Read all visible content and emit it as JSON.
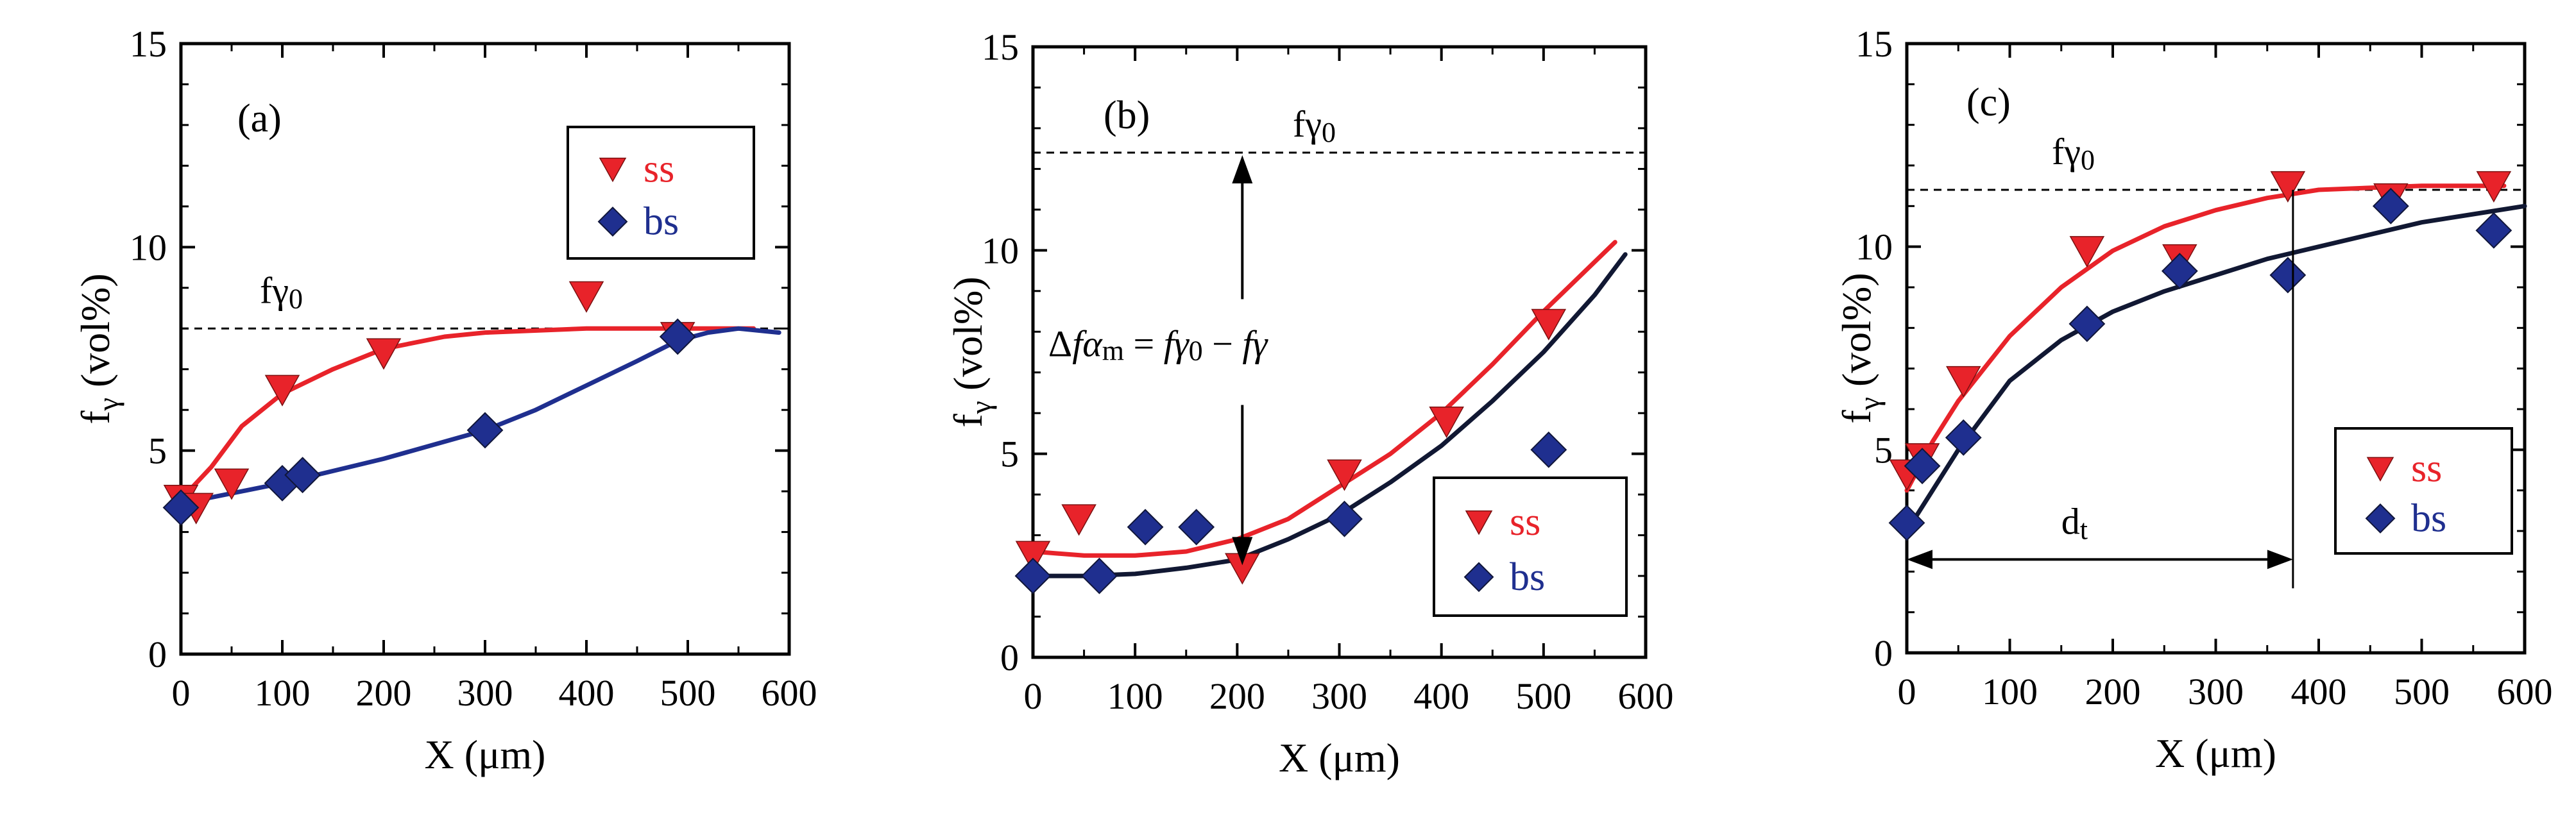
{
  "figure": {
    "colors": {
      "ss": "#e8232a",
      "bs": "#1f2f8f",
      "fit_bs_b": "#111833",
      "axis": "#000000"
    }
  },
  "chart_data": [
    {
      "type": "scatter",
      "panel_label": "(a)",
      "xlabel": "X (μm)",
      "ylabel_main": "f",
      "ylabel_sub": "γ",
      "ylabel_unit": "(vol%)",
      "xlim": [
        0,
        600
      ],
      "ylim": [
        0,
        15
      ],
      "xticks": [
        0,
        100,
        200,
        300,
        400,
        500,
        600
      ],
      "yticks": [
        0,
        5,
        10,
        15
      ],
      "reference": {
        "label_main": "fγ",
        "label_sub": "0",
        "y": 8.0
      },
      "legend": [
        "ss",
        "bs"
      ],
      "series": [
        {
          "name": "ss",
          "marker": "triangle-down",
          "color": "#e8232a",
          "points": [
            [
              0,
              3.8
            ],
            [
              15,
              3.6
            ],
            [
              50,
              4.2
            ],
            [
              100,
              6.5
            ],
            [
              200,
              7.4
            ],
            [
              400,
              8.8
            ],
            [
              490,
              7.8
            ]
          ]
        },
        {
          "name": "bs",
          "marker": "diamond",
          "color": "#1f2f8f",
          "points": [
            [
              0,
              3.6
            ],
            [
              100,
              4.2
            ],
            [
              120,
              4.4
            ],
            [
              300,
              5.5
            ],
            [
              490,
              7.8
            ]
          ]
        }
      ],
      "fits": [
        {
          "name": "ss",
          "color": "#e8232a",
          "points": [
            [
              0,
              3.8
            ],
            [
              30,
              4.6
            ],
            [
              60,
              5.6
            ],
            [
              100,
              6.4
            ],
            [
              150,
              7.0
            ],
            [
              200,
              7.5
            ],
            [
              260,
              7.8
            ],
            [
              300,
              7.9
            ],
            [
              400,
              8.0
            ],
            [
              500,
              8.0
            ],
            [
              565,
              8.0
            ]
          ]
        },
        {
          "name": "bs",
          "color": "#1f2f8f",
          "points": [
            [
              0,
              3.7
            ],
            [
              100,
              4.2
            ],
            [
              200,
              4.8
            ],
            [
              300,
              5.5
            ],
            [
              350,
              6.0
            ],
            [
              400,
              6.6
            ],
            [
              450,
              7.2
            ],
            [
              490,
              7.7
            ],
            [
              520,
              7.9
            ],
            [
              550,
              8.0
            ],
            [
              590,
              7.9
            ]
          ]
        }
      ]
    },
    {
      "type": "scatter",
      "panel_label": "(b)",
      "xlabel": "X (μm)",
      "ylabel_main": "f",
      "ylabel_sub": "γ",
      "ylabel_unit": "(vol%)",
      "xlim": [
        0,
        600
      ],
      "ylim": [
        0,
        15
      ],
      "xticks": [
        0,
        100,
        200,
        300,
        400,
        500,
        600
      ],
      "yticks": [
        0,
        5,
        10,
        15
      ],
      "reference": {
        "label_main": "fγ",
        "label_sub": "0",
        "y": 12.4
      },
      "annotation": {
        "delta": "Δ",
        "f_alpha": "fα",
        "alpha_sub": "m",
        "equals": " = ",
        "f_gamma": "fγ",
        "gamma0_sub": "0",
        "minus": " − ",
        "f_gamma2": "fγ",
        "arrow_x": 205,
        "arrow_y_top": 12.4,
        "arrow_y_bottom": 2.2
      },
      "legend": [
        "ss",
        "bs"
      ],
      "series": [
        {
          "name": "ss",
          "marker": "triangle-down",
          "color": "#e8232a",
          "points": [
            [
              0,
              2.5
            ],
            [
              45,
              3.4
            ],
            [
              205,
              2.2
            ],
            [
              305,
              4.5
            ],
            [
              405,
              5.8
            ],
            [
              505,
              8.2
            ]
          ]
        },
        {
          "name": "bs",
          "marker": "diamond",
          "color": "#1f2f8f",
          "points": [
            [
              0,
              2.0
            ],
            [
              65,
              2.0
            ],
            [
              110,
              3.2
            ],
            [
              160,
              3.2
            ],
            [
              305,
              3.4
            ],
            [
              505,
              5.1
            ]
          ]
        }
      ],
      "fits": [
        {
          "name": "ss",
          "color": "#e8232a",
          "points": [
            [
              0,
              2.6
            ],
            [
              50,
              2.5
            ],
            [
              100,
              2.5
            ],
            [
              150,
              2.6
            ],
            [
              200,
              2.9
            ],
            [
              250,
              3.4
            ],
            [
              300,
              4.2
            ],
            [
              350,
              5.0
            ],
            [
              400,
              6.0
            ],
            [
              450,
              7.2
            ],
            [
              500,
              8.5
            ],
            [
              570,
              10.2
            ]
          ]
        },
        {
          "name": "bs",
          "color": "#111833",
          "points": [
            [
              0,
              2.0
            ],
            [
              50,
              2.0
            ],
            [
              100,
              2.05
            ],
            [
              150,
              2.2
            ],
            [
              200,
              2.4
            ],
            [
              250,
              2.9
            ],
            [
              300,
              3.5
            ],
            [
              350,
              4.3
            ],
            [
              400,
              5.2
            ],
            [
              450,
              6.3
            ],
            [
              500,
              7.5
            ],
            [
              550,
              8.9
            ],
            [
              580,
              9.9
            ]
          ]
        }
      ]
    },
    {
      "type": "scatter",
      "panel_label": "(c)",
      "xlabel": "X (μm)",
      "ylabel_main": "f",
      "ylabel_sub": "γ",
      "ylabel_unit": "(vol%)",
      "xlim": [
        0,
        600
      ],
      "ylim": [
        0,
        15
      ],
      "xticks": [
        0,
        100,
        200,
        300,
        400,
        500,
        600
      ],
      "yticks": [
        0,
        5,
        10,
        15
      ],
      "reference": {
        "label_main": "fγ",
        "label_sub": "0",
        "y": 11.4
      },
      "dt": {
        "label_main": "d",
        "label_sub": "t",
        "x_end": 375,
        "y": 2.3
      },
      "legend": [
        "ss",
        "bs"
      ],
      "series": [
        {
          "name": "ss",
          "marker": "triangle-down",
          "color": "#e8232a",
          "points": [
            [
              0,
              4.4
            ],
            [
              15,
              4.8
            ],
            [
              55,
              6.7
            ],
            [
              175,
              9.9
            ],
            [
              265,
              9.7
            ],
            [
              370,
              11.5
            ],
            [
              470,
              11.2
            ],
            [
              570,
              11.5
            ]
          ]
        },
        {
          "name": "bs",
          "marker": "diamond",
          "color": "#1f2f8f",
          "points": [
            [
              0,
              3.2
            ],
            [
              15,
              4.6
            ],
            [
              55,
              5.3
            ],
            [
              175,
              8.1
            ],
            [
              265,
              9.4
            ],
            [
              370,
              9.3
            ],
            [
              470,
              11.0
            ],
            [
              570,
              10.4
            ]
          ]
        }
      ],
      "fits": [
        {
          "name": "ss",
          "color": "#e8232a",
          "points": [
            [
              0,
              4.0
            ],
            [
              25,
              5.2
            ],
            [
              50,
              6.2
            ],
            [
              100,
              7.8
            ],
            [
              150,
              9.0
            ],
            [
              200,
              9.9
            ],
            [
              250,
              10.5
            ],
            [
              300,
              10.9
            ],
            [
              350,
              11.2
            ],
            [
              400,
              11.4
            ],
            [
              500,
              11.5
            ],
            [
              580,
              11.5
            ]
          ]
        },
        {
          "name": "bs",
          "color": "#111833",
          "points": [
            [
              0,
              3.0
            ],
            [
              25,
              4.0
            ],
            [
              50,
              5.0
            ],
            [
              100,
              6.7
            ],
            [
              150,
              7.7
            ],
            [
              200,
              8.4
            ],
            [
              250,
              8.9
            ],
            [
              300,
              9.3
            ],
            [
              350,
              9.7
            ],
            [
              400,
              10.0
            ],
            [
              450,
              10.3
            ],
            [
              500,
              10.6
            ],
            [
              550,
              10.8
            ],
            [
              600,
              11.0
            ]
          ]
        }
      ]
    }
  ]
}
